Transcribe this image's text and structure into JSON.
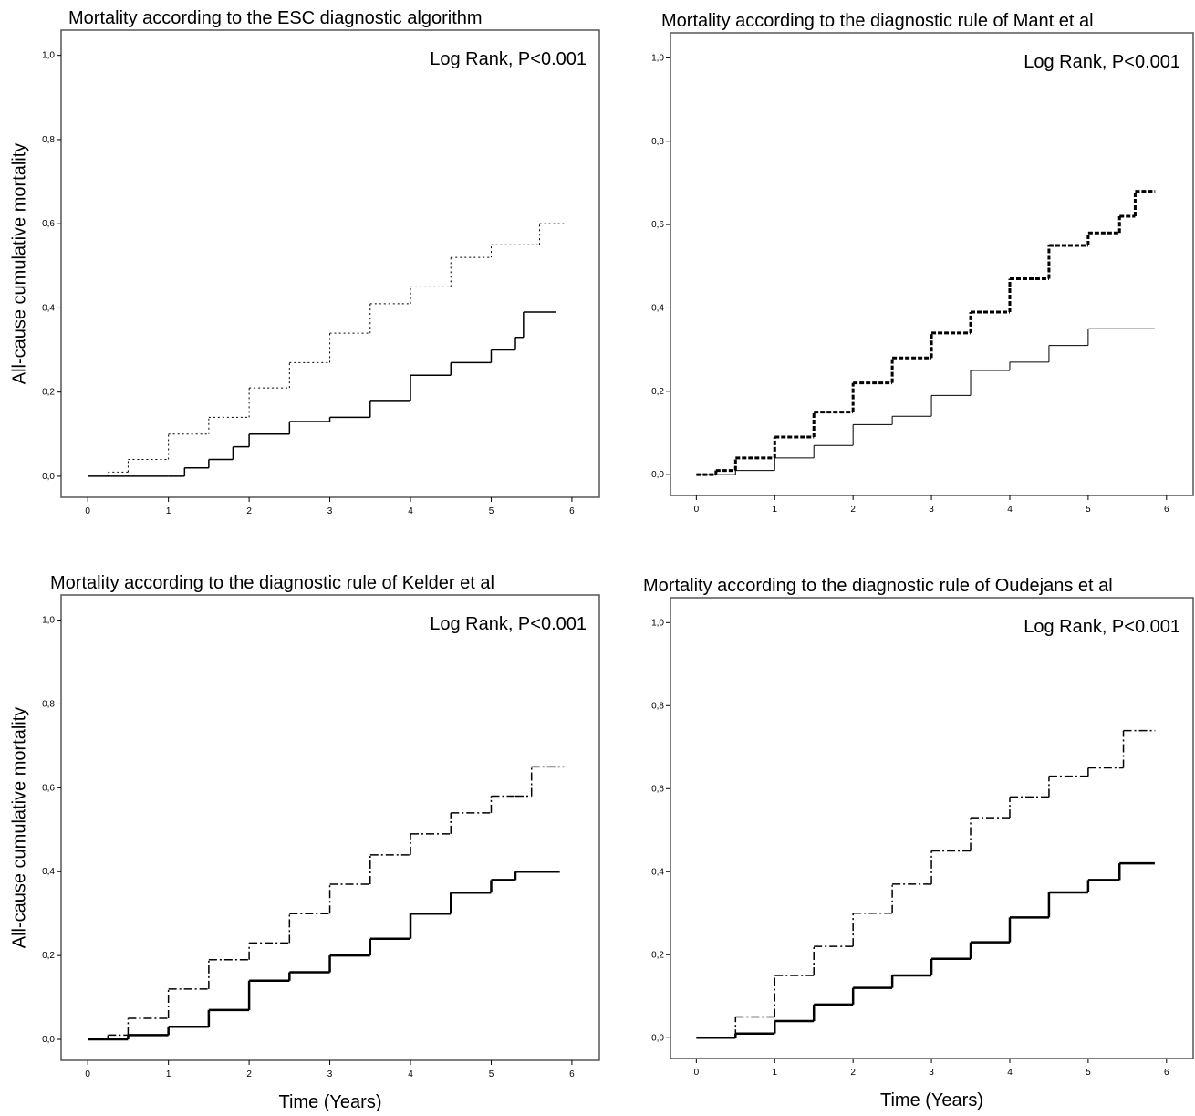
{
  "chart_data": [
    {
      "type": "line",
      "step": true,
      "title": "Mortality according to the ESC diagnostic algorithm",
      "annotation": "Log Rank, P<0.001",
      "y_label": "All-cause cumulative mortality",
      "xlim": [
        -0.33,
        6.34
      ],
      "ylim": [
        -0.05,
        1.06
      ],
      "xticks": [
        0,
        1,
        2,
        3,
        4,
        5,
        6
      ],
      "yticks": [
        {
          "value": 0,
          "label": "0,0"
        },
        {
          "value": 0.2,
          "label": "0,2"
        },
        {
          "value": 0.4,
          "label": "0,4"
        },
        {
          "value": 0.6,
          "label": "0,6"
        },
        {
          "value": 0.8,
          "label": "0,8"
        },
        {
          "value": 1,
          "label": "1,0"
        }
      ],
      "series": [
        {
          "color": "#000000",
          "dash": "dotted",
          "width": 1,
          "x": [
            0,
            0.25,
            0.5,
            1,
            1.5,
            2,
            2.5,
            3,
            3.5,
            4,
            4.5,
            5,
            5.5,
            5.6,
            5.9
          ],
          "values": [
            0,
            0.01,
            0.04,
            0.1,
            0.14,
            0.21,
            0.27,
            0.34,
            0.41,
            0.45,
            0.52,
            0.55,
            0.55,
            0.6,
            0.6
          ]
        },
        {
          "color": "#000000",
          "dash": "solid",
          "width": 1.5,
          "x": [
            0,
            1,
            1.2,
            1.5,
            1.8,
            2,
            2.5,
            3,
            3.5,
            4,
            4.5,
            5,
            5.3,
            5.4,
            5.8
          ],
          "values": [
            0,
            0,
            0.02,
            0.04,
            0.07,
            0.1,
            0.13,
            0.14,
            0.18,
            0.24,
            0.27,
            0.3,
            0.33,
            0.39,
            0.39
          ]
        }
      ]
    },
    {
      "type": "line",
      "step": true,
      "title": "Mortality according to the diagnostic rule of Mant et al",
      "annotation": "Log Rank, P<0.001",
      "xlim": [
        -0.33,
        6.34
      ],
      "ylim": [
        -0.05,
        1.06
      ],
      "xticks": [
        0,
        1,
        2,
        3,
        4,
        5,
        6
      ],
      "yticks": [
        {
          "value": 0,
          "label": "0,0"
        },
        {
          "value": 0.2,
          "label": "0,2"
        },
        {
          "value": 0.4,
          "label": "0,4"
        },
        {
          "value": 0.6,
          "label": "0,6"
        },
        {
          "value": 0.8,
          "label": "0,8"
        },
        {
          "value": 1,
          "label": "1,0"
        }
      ],
      "series": [
        {
          "color": "#000000",
          "dash": "dashed",
          "width": 3,
          "x": [
            0,
            0.25,
            0.5,
            1,
            1.5,
            2,
            2.5,
            3,
            3.5,
            4,
            4.5,
            5,
            5.4,
            5.6,
            5.85
          ],
          "values": [
            0,
            0.01,
            0.04,
            0.09,
            0.15,
            0.22,
            0.28,
            0.34,
            0.39,
            0.47,
            0.55,
            0.58,
            0.62,
            0.68,
            0.68
          ]
        },
        {
          "color": "#000000",
          "dash": "solid",
          "width": 1,
          "x": [
            0,
            0.5,
            1,
            1.5,
            2,
            2.5,
            3,
            3.5,
            4,
            4.5,
            5,
            5.85
          ],
          "values": [
            0,
            0.01,
            0.04,
            0.07,
            0.12,
            0.14,
            0.19,
            0.25,
            0.27,
            0.31,
            0.35,
            0.35
          ]
        }
      ]
    },
    {
      "type": "line",
      "step": true,
      "title": "Mortality according to the diagnostic rule of Kelder et al",
      "annotation": "Log Rank, P<0.001",
      "y_label": "All-cause cumulative mortality",
      "x_label": "Time (Years)",
      "xlim": [
        -0.33,
        6.34
      ],
      "ylim": [
        -0.05,
        1.06
      ],
      "xticks": [
        0,
        1,
        2,
        3,
        4,
        5,
        6
      ],
      "yticks": [
        {
          "value": 0,
          "label": "0,0"
        },
        {
          "value": 0.2,
          "label": "0,2"
        },
        {
          "value": 0.4,
          "label": "0,4"
        },
        {
          "value": 0.6,
          "label": "0,6"
        },
        {
          "value": 0.8,
          "label": "0,8"
        },
        {
          "value": 1,
          "label": "1,0"
        }
      ],
      "series": [
        {
          "color": "#000000",
          "dash": "dashdot",
          "width": 1.5,
          "x": [
            0,
            0.25,
            0.5,
            1,
            1.5,
            2,
            2.5,
            3,
            3.5,
            4,
            4.5,
            5,
            5.3,
            5.5,
            5.9
          ],
          "values": [
            0,
            0.01,
            0.05,
            0.12,
            0.19,
            0.23,
            0.3,
            0.37,
            0.44,
            0.49,
            0.54,
            0.58,
            0.58,
            0.65,
            0.65
          ]
        },
        {
          "color": "#000000",
          "dash": "solid",
          "width": 2.5,
          "x": [
            0,
            0.5,
            1,
            1.5,
            2,
            2.5,
            3,
            3.5,
            4,
            4.5,
            5,
            5.3,
            5.85
          ],
          "values": [
            0,
            0.01,
            0.03,
            0.07,
            0.14,
            0.16,
            0.2,
            0.24,
            0.3,
            0.35,
            0.38,
            0.4,
            0.4
          ]
        }
      ]
    },
    {
      "type": "line",
      "step": true,
      "title": "Mortality according to the diagnostic rule of Oudejans et al",
      "annotation": "Log Rank, P<0.001",
      "x_label": "Time (Years)",
      "xlim": [
        -0.33,
        6.34
      ],
      "ylim": [
        -0.05,
        1.06
      ],
      "xticks": [
        0,
        1,
        2,
        3,
        4,
        5,
        6
      ],
      "yticks": [
        {
          "value": 0,
          "label": "0,0"
        },
        {
          "value": 0.2,
          "label": "0,2"
        },
        {
          "value": 0.4,
          "label": "0,4"
        },
        {
          "value": 0.6,
          "label": "0,6"
        },
        {
          "value": 0.8,
          "label": "0,8"
        },
        {
          "value": 1,
          "label": "1,0"
        }
      ],
      "series": [
        {
          "color": "#000000",
          "dash": "dashdot",
          "width": 1.5,
          "x": [
            0,
            0.5,
            1,
            1.5,
            2,
            2.5,
            3,
            3.5,
            4,
            4.5,
            5,
            5.4,
            5.45,
            5.85
          ],
          "values": [
            0,
            0.05,
            0.15,
            0.22,
            0.3,
            0.37,
            0.45,
            0.53,
            0.58,
            0.63,
            0.65,
            0.65,
            0.74,
            0.74
          ]
        },
        {
          "color": "#000000",
          "dash": "solid",
          "width": 2.5,
          "x": [
            0,
            0.5,
            1,
            1.5,
            2,
            2.5,
            3,
            3.5,
            4,
            4.5,
            5,
            5.4,
            5.85
          ],
          "values": [
            0,
            0.01,
            0.04,
            0.08,
            0.12,
            0.15,
            0.19,
            0.23,
            0.29,
            0.35,
            0.38,
            0.42,
            0.42
          ]
        }
      ]
    }
  ]
}
